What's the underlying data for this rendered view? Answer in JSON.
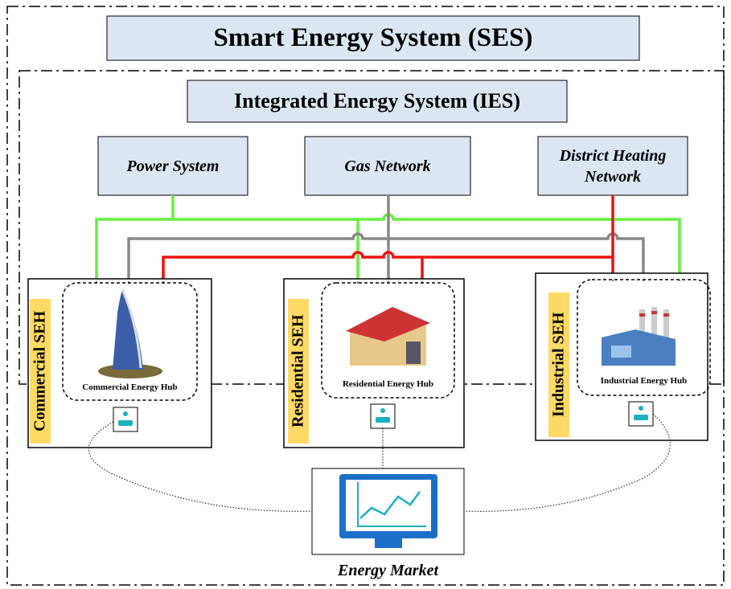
{
  "title": "Smart Energy System (SES)",
  "subtitle": "Integrated Energy System (IES)",
  "networks": [
    {
      "label": "Power System"
    },
    {
      "label": "Gas Network"
    },
    {
      "label": "District Heating Network"
    }
  ],
  "hubs": [
    {
      "label": "Commercial SEH",
      "caption": "Commercial Energy Hub"
    },
    {
      "label": "Residential SEH",
      "caption": "Residential Energy Hub"
    },
    {
      "label": "Industrial SEH",
      "caption": "Industrial Energy Hub"
    }
  ],
  "market": {
    "label": "Energy Market"
  }
}
